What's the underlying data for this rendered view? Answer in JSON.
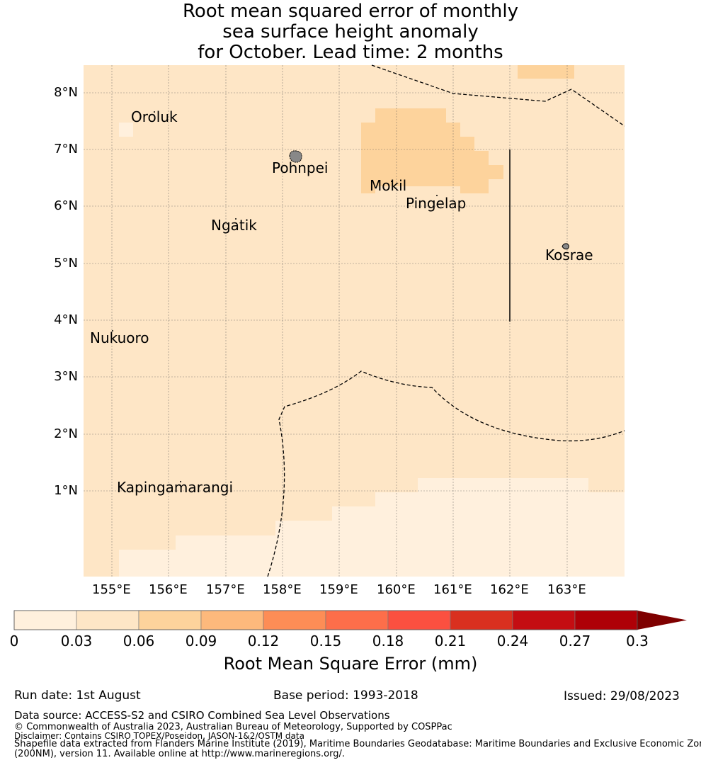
{
  "title": {
    "line1": "Root mean squared error of monthly",
    "line2": "sea surface height anomaly",
    "line3": "for October. Lead time: 2 months"
  },
  "map": {
    "lat_labels": [
      "8°N",
      "7°N",
      "6°N",
      "5°N",
      "4°N",
      "3°N",
      "2°N",
      "1°N"
    ],
    "lon_labels": [
      "155°E",
      "156°E",
      "157°E",
      "158°E",
      "159°E",
      "160°E",
      "161°E",
      "162°E",
      "163°E"
    ],
    "places": [
      "Oroluk",
      "Pohnpei",
      "Mokil",
      "Pingelap",
      "Ngatik",
      "Kosrae",
      "Nukuoro",
      "Kapingamarangi"
    ],
    "colors": {
      "background_cell": "#fee6c6",
      "low_cell": "#fff0dd",
      "mid_cell": "#fdd39c"
    }
  },
  "colorbar": {
    "ticks": [
      "0",
      "0.03",
      "0.06",
      "0.09",
      "0.12",
      "0.15",
      "0.18",
      "0.21",
      "0.24",
      "0.27",
      "0.3"
    ],
    "colors": [
      "#fff0dd",
      "#fee6c6",
      "#fdd39c",
      "#fdb97c",
      "#fd8d56",
      "#fd6e4a",
      "#fb5040",
      "#d9301f",
      "#c40d12",
      "#ae0007"
    ],
    "extend_color": "#7f0000",
    "label": "Root Mean Square Error (mm)"
  },
  "footer": {
    "run_date": "Run date: 1st August",
    "base_period": "Base period: 1993-2018",
    "issued": "Issued: 29/08/2023",
    "data_source": "Data source: ACCESS-S2 and CSIRO Combined Sea Level Observations",
    "copyright": "© Commonwealth of Australia 2023, Australian Bureau of Meteorology, Supported by COSPPac",
    "disclaimer": "Disclaimer: Contains CSIRO TOPEX/Poseidon, JASON-1&2/OSTM data",
    "shapefile_1": "Shapefile data extracted from Flanders Marine Institute (2019), Maritime Boundaries Geodatabase: Maritime Boundaries and Exclusive Economic Zones",
    "shapefile_2": "(200NM), version 11. Available online at http://www.marineregions.org/."
  }
}
